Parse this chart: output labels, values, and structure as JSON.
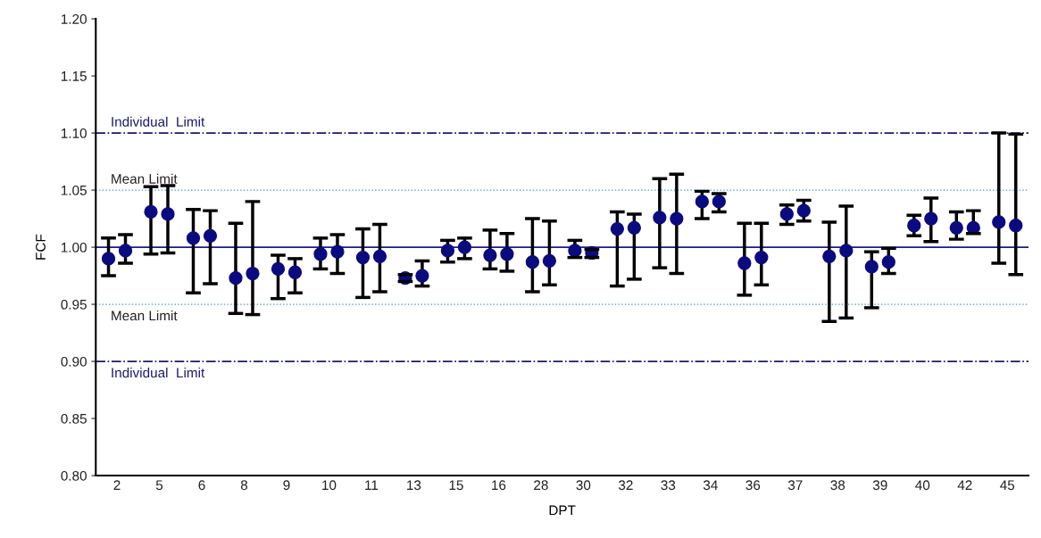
{
  "chart_data": {
    "type": "scatter",
    "xlabel": "DPT",
    "ylabel": "FCF",
    "categories": [
      "2",
      "5",
      "6",
      "8",
      "9",
      "10",
      "11",
      "13",
      "15",
      "16",
      "28",
      "30",
      "32",
      "33",
      "34",
      "36",
      "37",
      "38",
      "39",
      "40",
      "42",
      "45"
    ],
    "series": [
      {
        "color": "#0b0b80",
        "values": [
          0.99,
          1.031,
          1.008,
          0.973,
          0.981,
          0.994,
          0.991,
          0.973,
          0.997,
          0.993,
          0.987,
          0.997,
          1.016,
          1.026,
          1.04,
          0.986,
          1.029,
          0.992,
          0.983,
          1.019,
          1.017,
          1.022
        ],
        "errors": [
          [
            0.975,
            1.008
          ],
          [
            0.994,
            1.053
          ],
          [
            0.96,
            1.033
          ],
          [
            0.942,
            1.021
          ],
          [
            0.955,
            0.993
          ],
          [
            0.981,
            1.008
          ],
          [
            0.956,
            1.016
          ],
          [
            0.97,
            0.976
          ],
          [
            0.987,
            1.006
          ],
          [
            0.981,
            1.015
          ],
          [
            0.961,
            1.025
          ],
          [
            0.991,
            1.006
          ],
          [
            0.966,
            1.031
          ],
          [
            0.982,
            1.06
          ],
          [
            1.025,
            1.049
          ],
          [
            0.958,
            1.021
          ],
          [
            1.02,
            1.037
          ],
          [
            0.935,
            1.022
          ],
          [
            0.947,
            0.996
          ],
          [
            1.01,
            1.028
          ],
          [
            1.007,
            1.031
          ],
          [
            0.986,
            1.1
          ]
        ]
      },
      {
        "color": "#0b0b80",
        "values": [
          0.997,
          1.029,
          1.01,
          0.977,
          0.978,
          0.996,
          0.992,
          0.975,
          1.0,
          0.994,
          0.988,
          0.995,
          1.017,
          1.025,
          1.04,
          0.991,
          1.032,
          0.997,
          0.987,
          1.025,
          1.017,
          1.019
        ],
        "errors": [
          [
            0.986,
            1.011
          ],
          [
            0.995,
            1.054
          ],
          [
            0.968,
            1.032
          ],
          [
            0.941,
            1.04
          ],
          [
            0.96,
            0.99
          ],
          [
            0.977,
            1.011
          ],
          [
            0.961,
            1.02
          ],
          [
            0.966,
            0.988
          ],
          [
            0.99,
            1.008
          ],
          [
            0.979,
            1.012
          ],
          [
            0.967,
            1.023
          ],
          [
            0.991,
            0.998
          ],
          [
            0.972,
            1.029
          ],
          [
            0.977,
            1.064
          ],
          [
            1.031,
            1.047
          ],
          [
            0.967,
            1.021
          ],
          [
            1.023,
            1.041
          ],
          [
            0.938,
            1.036
          ],
          [
            0.977,
            0.999
          ],
          [
            1.005,
            1.043
          ],
          [
            1.012,
            1.032
          ],
          [
            0.976,
            1.099
          ]
        ]
      }
    ],
    "ylim": [
      0.8,
      1.2
    ],
    "yticks": [
      {
        "value": 0.8,
        "label": "0.80"
      },
      {
        "value": 0.85,
        "label": "0.85"
      },
      {
        "value": 0.9,
        "label": "0.90"
      },
      {
        "value": 0.95,
        "label": "0.95"
      },
      {
        "value": 1.0,
        "label": "1.00"
      },
      {
        "value": 1.05,
        "label": "1.05"
      },
      {
        "value": 1.1,
        "label": "1.10"
      },
      {
        "value": 1.15,
        "label": "1.15"
      },
      {
        "value": 1.2,
        "label": "1.20"
      }
    ],
    "ref_lines": [
      {
        "axis": "y",
        "value": 1.1,
        "label": "Individual  Limit",
        "color": "#1a1a70",
        "line_style": "dashdot"
      },
      {
        "axis": "y",
        "value": 1.05,
        "label": "Mean Limit",
        "color": "#3fa0c8",
        "line_style": "dotted"
      },
      {
        "axis": "y",
        "value": 1.0,
        "color": "#1a1a90",
        "line_style": "solid"
      },
      {
        "axis": "y",
        "value": 0.95,
        "label": "Mean Limit",
        "color": "#3fa0c8",
        "line_style": "dotted"
      },
      {
        "axis": "y",
        "value": 0.9,
        "label": "Individual  Limit",
        "color": "#1a1a70",
        "line_style": "dashdot"
      }
    ],
    "marker": "circle",
    "grid": false,
    "legend": false
  }
}
